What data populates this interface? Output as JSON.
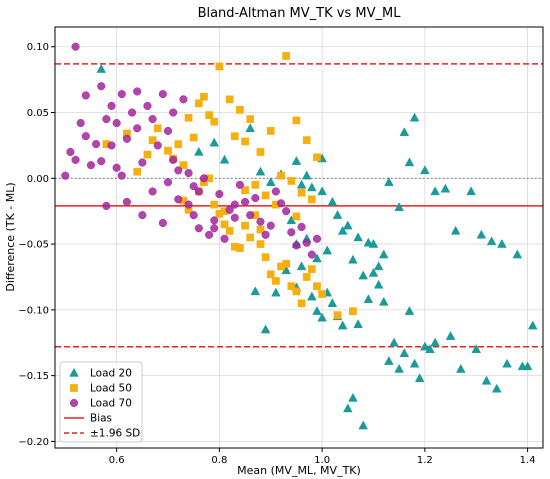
{
  "chart_data": {
    "type": "scatter",
    "title": "Bland-Altman MV_TK vs MV_ML",
    "xlabel": "Mean (MV_ML, MV_TK)",
    "ylabel": "Difference (TK - ML)",
    "xlim": [
      0.48,
      1.43
    ],
    "ylim": [
      -0.205,
      0.115
    ],
    "xticks": [
      0.6,
      0.8,
      1.0,
      1.2,
      1.4
    ],
    "yticks": [
      0.1,
      0.05,
      0.0,
      -0.05,
      -0.1,
      -0.15,
      -0.2
    ],
    "xtick_labels": [
      "0.6",
      "0.8",
      "1.0",
      "1.2",
      "1.4"
    ],
    "ytick_labels": [
      "0.10",
      "0.05",
      "0.00",
      "−0.05",
      "−0.10",
      "−0.15",
      "−0.20"
    ],
    "grid": true,
    "legend_position": "bottom-left",
    "reference_lines": {
      "zero": {
        "y": 0.0,
        "color": "#808080",
        "style": "dotted"
      },
      "bias": {
        "y": -0.021,
        "color": "#e8201e",
        "style": "solid",
        "label": "Bias"
      },
      "upper_loa": {
        "y": 0.087,
        "color": "#e8201e",
        "style": "dashed",
        "label": "±1.96 SD"
      },
      "lower_loa": {
        "y": -0.128,
        "color": "#e8201e",
        "style": "dashed"
      }
    },
    "series": [
      {
        "name": "Load 20",
        "marker": "triangle",
        "color": "#1a9a9a",
        "points": [
          [
            0.57,
            0.083
          ],
          [
            0.79,
            0.027
          ],
          [
            0.76,
            0.02
          ],
          [
            0.81,
            0.014
          ],
          [
            0.86,
            0.038
          ],
          [
            0.88,
            0.005
          ],
          [
            0.9,
            -0.003
          ],
          [
            0.92,
            0.003
          ],
          [
            0.95,
            0.013
          ],
          [
            0.96,
            -0.005
          ],
          [
            0.97,
            0.002
          ],
          [
            0.98,
            -0.007
          ],
          [
            1.0,
            -0.01
          ],
          [
            1.0,
            0.015
          ],
          [
            1.02,
            -0.018
          ],
          [
            1.03,
            -0.028
          ],
          [
            1.05,
            -0.036
          ],
          [
            1.07,
            -0.045
          ],
          [
            1.09,
            -0.049
          ],
          [
            1.1,
            -0.05
          ],
          [
            1.12,
            -0.058
          ],
          [
            1.13,
            -0.003
          ],
          [
            1.15,
            -0.022
          ],
          [
            1.16,
            0.035
          ],
          [
            1.17,
            0.012
          ],
          [
            1.18,
            0.046
          ],
          [
            1.2,
            0.006
          ],
          [
            1.22,
            -0.01
          ],
          [
            1.24,
            -0.008
          ],
          [
            1.26,
            -0.04
          ],
          [
            1.29,
            -0.01
          ],
          [
            1.31,
            -0.043
          ],
          [
            1.33,
            -0.048
          ],
          [
            1.35,
            -0.05
          ],
          [
            1.38,
            -0.058
          ],
          [
            0.87,
            -0.086
          ],
          [
            0.89,
            -0.115
          ],
          [
            0.91,
            -0.087
          ],
          [
            0.93,
            -0.07
          ],
          [
            0.95,
            -0.083
          ],
          [
            0.96,
            -0.067
          ],
          [
            0.98,
            -0.09
          ],
          [
            0.99,
            -0.101
          ],
          [
            1.0,
            -0.106
          ],
          [
            1.01,
            -0.087
          ],
          [
            1.02,
            -0.095
          ],
          [
            1.03,
            -0.105
          ],
          [
            1.04,
            -0.112
          ],
          [
            1.05,
            -0.175
          ],
          [
            1.06,
            -0.167
          ],
          [
            1.07,
            -0.111
          ],
          [
            1.08,
            -0.188
          ],
          [
            1.09,
            -0.092
          ],
          [
            1.1,
            -0.072
          ],
          [
            1.11,
            -0.081
          ],
          [
            1.12,
            -0.094
          ],
          [
            1.13,
            -0.139
          ],
          [
            1.14,
            -0.125
          ],
          [
            1.15,
            -0.145
          ],
          [
            1.16,
            -0.133
          ],
          [
            1.17,
            -0.101
          ],
          [
            1.18,
            -0.141
          ],
          [
            1.19,
            -0.152
          ],
          [
            1.2,
            -0.128
          ],
          [
            1.21,
            -0.13
          ],
          [
            1.22,
            -0.125
          ],
          [
            1.25,
            -0.12
          ],
          [
            1.27,
            -0.145
          ],
          [
            1.3,
            -0.13
          ],
          [
            1.32,
            -0.154
          ],
          [
            1.34,
            -0.16
          ],
          [
            1.36,
            -0.141
          ],
          [
            1.39,
            -0.143
          ],
          [
            1.41,
            -0.112
          ],
          [
            1.4,
            -0.143
          ],
          [
            0.95,
            -0.05
          ],
          [
            0.99,
            -0.061
          ],
          [
            1.01,
            -0.055
          ],
          [
            1.04,
            -0.04
          ],
          [
            1.06,
            -0.062
          ],
          [
            0.97,
            -0.046
          ],
          [
            0.94,
            -0.032
          ],
          [
            1.08,
            -0.074
          ],
          [
            1.11,
            -0.067
          ]
        ]
      },
      {
        "name": "Load 50",
        "marker": "square",
        "color": "#f5b00f",
        "points": [
          [
            0.58,
            0.026
          ],
          [
            0.62,
            0.034
          ],
          [
            0.64,
            0.005
          ],
          [
            0.66,
            0.018
          ],
          [
            0.67,
            0.029
          ],
          [
            0.68,
            0.038
          ],
          [
            0.7,
            0.021
          ],
          [
            0.71,
            0.015
          ],
          [
            0.72,
            0.026
          ],
          [
            0.73,
            0.01
          ],
          [
            0.74,
            0.046
          ],
          [
            0.75,
            0.031
          ],
          [
            0.76,
            0.057
          ],
          [
            0.77,
            0.062
          ],
          [
            0.78,
            0.048
          ],
          [
            0.79,
            0.043
          ],
          [
            0.8,
            0.085
          ],
          [
            0.82,
            0.06
          ],
          [
            0.83,
            0.032
          ],
          [
            0.84,
            0.052
          ],
          [
            0.85,
            0.028
          ],
          [
            0.86,
            0.045
          ],
          [
            0.88,
            0.02
          ],
          [
            0.9,
            0.036
          ],
          [
            0.93,
            0.093
          ],
          [
            0.95,
            0.044
          ],
          [
            0.97,
            0.029
          ],
          [
            0.99,
            0.016
          ],
          [
            0.73,
            -0.017
          ],
          [
            0.74,
            -0.024
          ],
          [
            0.76,
            -0.01
          ],
          [
            0.77,
            -0.003
          ],
          [
            0.78,
            0.0
          ],
          [
            0.79,
            -0.02
          ],
          [
            0.8,
            -0.027
          ],
          [
            0.81,
            -0.035
          ],
          [
            0.82,
            -0.04
          ],
          [
            0.83,
            -0.052
          ],
          [
            0.84,
            -0.053
          ],
          [
            0.85,
            -0.036
          ],
          [
            0.86,
            -0.045
          ],
          [
            0.87,
            -0.028
          ],
          [
            0.88,
            -0.05
          ],
          [
            0.89,
            -0.06
          ],
          [
            0.9,
            -0.073
          ],
          [
            0.91,
            -0.078
          ],
          [
            0.92,
            -0.067
          ],
          [
            0.93,
            -0.065
          ],
          [
            0.94,
            -0.082
          ],
          [
            0.95,
            -0.086
          ],
          [
            0.96,
            -0.095
          ],
          [
            0.97,
            -0.075
          ],
          [
            0.98,
            -0.069
          ],
          [
            0.99,
            -0.082
          ],
          [
            1.0,
            -0.088
          ],
          [
            1.03,
            -0.104
          ],
          [
            1.06,
            -0.101
          ],
          [
            0.92,
            0.002
          ],
          [
            0.94,
            -0.002
          ],
          [
            0.96,
            -0.011
          ],
          [
            0.98,
            -0.016
          ],
          [
            0.85,
            -0.009
          ],
          [
            0.89,
            -0.013
          ],
          [
            0.91,
            -0.02
          ],
          [
            0.87,
            -0.005
          ],
          [
            0.81,
            -0.025
          ],
          [
            0.88,
            -0.039
          ],
          [
            0.95,
            -0.029
          ]
        ]
      },
      {
        "name": "Load 70",
        "marker": "circle",
        "color": "#a3249f",
        "points": [
          [
            0.5,
            0.002
          ],
          [
            0.51,
            0.02
          ],
          [
            0.52,
            0.014
          ],
          [
            0.52,
            0.1
          ],
          [
            0.53,
            0.042
          ],
          [
            0.54,
            0.063
          ],
          [
            0.54,
            0.032
          ],
          [
            0.55,
            0.01
          ],
          [
            0.56,
            0.026
          ],
          [
            0.57,
            0.013
          ],
          [
            0.57,
            0.07
          ],
          [
            0.58,
            0.045
          ],
          [
            0.58,
            -0.021
          ],
          [
            0.59,
            0.025
          ],
          [
            0.59,
            0.055
          ],
          [
            0.6,
            0.042
          ],
          [
            0.61,
            0.064
          ],
          [
            0.61,
            0.002
          ],
          [
            0.62,
            0.03
          ],
          [
            0.63,
            0.05
          ],
          [
            0.64,
            0.066
          ],
          [
            0.64,
            0.038
          ],
          [
            0.65,
            0.012
          ],
          [
            0.66,
            0.055
          ],
          [
            0.67,
            0.045
          ],
          [
            0.67,
            -0.01
          ],
          [
            0.68,
            0.025
          ],
          [
            0.69,
            0.064
          ],
          [
            0.7,
            -0.003
          ],
          [
            0.7,
            0.036
          ],
          [
            0.71,
            0.05
          ],
          [
            0.72,
            -0.016
          ],
          [
            0.72,
            0.006
          ],
          [
            0.73,
            0.06
          ],
          [
            0.74,
            -0.02
          ],
          [
            0.75,
            -0.028
          ],
          [
            0.75,
            -0.006
          ],
          [
            0.76,
            -0.038
          ],
          [
            0.77,
            0.0
          ],
          [
            0.78,
            -0.043
          ],
          [
            0.79,
            -0.032
          ],
          [
            0.8,
            -0.012
          ],
          [
            0.81,
            -0.046
          ],
          [
            0.82,
            -0.024
          ],
          [
            0.83,
            -0.03
          ],
          [
            0.84,
            -0.005
          ],
          [
            0.85,
            -0.018
          ],
          [
            0.86,
            -0.028
          ],
          [
            0.87,
            -0.015
          ],
          [
            0.88,
            -0.033
          ],
          [
            0.89,
            -0.043
          ],
          [
            0.9,
            -0.036
          ],
          [
            0.91,
            -0.01
          ],
          [
            0.92,
            -0.019
          ],
          [
            0.93,
            -0.025
          ],
          [
            0.94,
            -0.041
          ],
          [
            0.95,
            -0.051
          ],
          [
            0.96,
            -0.037
          ],
          [
            0.97,
            -0.049
          ],
          [
            0.98,
            -0.058
          ],
          [
            0.99,
            -0.046
          ],
          [
            0.71,
            0.014
          ],
          [
            0.74,
            0.004
          ],
          [
            0.69,
            -0.034
          ],
          [
            0.76,
            -0.01
          ],
          [
            0.79,
            -0.038
          ],
          [
            0.83,
            -0.02
          ],
          [
            0.65,
            -0.028
          ],
          [
            0.62,
            -0.018
          ],
          [
            0.6,
            0.008
          ]
        ]
      }
    ]
  }
}
